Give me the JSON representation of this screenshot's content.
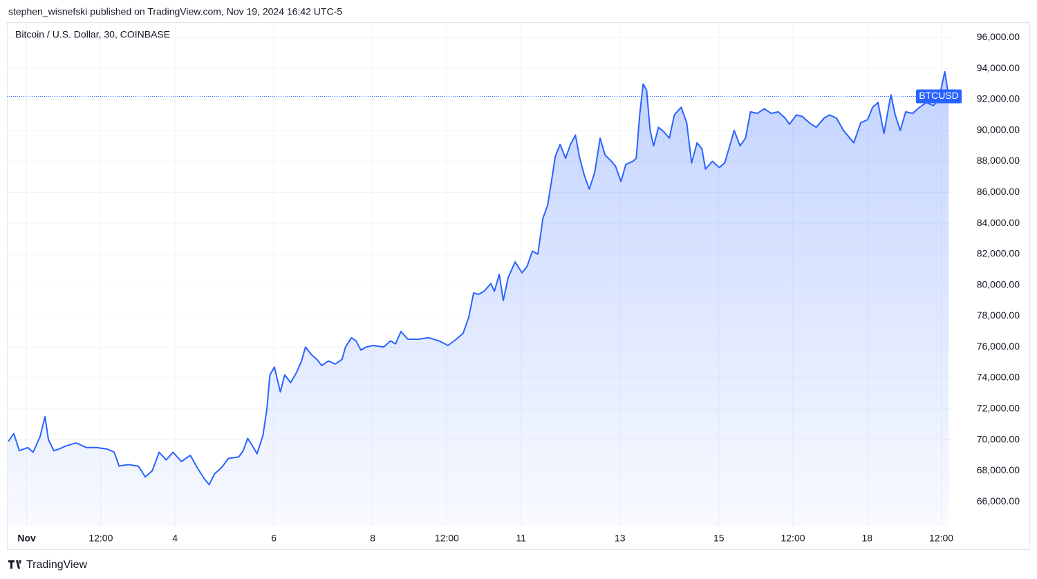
{
  "header": "stephen_wisnefski published on TradingView.com, Nov 19, 2024 16:42 UTC-5",
  "footer": "TradingView",
  "chart_data": {
    "type": "area",
    "title": "Bitcoin / U.S. Dollar, 30, COINBASE",
    "grid": true,
    "x": [
      0.63,
      0.74,
      0.85,
      1.02,
      1.13,
      1.27,
      1.37,
      1.44,
      1.55,
      1.65,
      1.79,
      2.0,
      2.21,
      2.42,
      2.63,
      2.77,
      2.87,
      3.05,
      3.26,
      3.4,
      3.54,
      3.68,
      3.82,
      3.96,
      4.13,
      4.31,
      4.45,
      4.59,
      4.69,
      4.8,
      4.94,
      5.08,
      5.29,
      5.38,
      5.47,
      5.57,
      5.66,
      5.78,
      5.86,
      5.92,
      6.01,
      6.13,
      6.22,
      6.34,
      6.45,
      6.56,
      6.64,
      6.76,
      6.87,
      6.97,
      7.1,
      7.24,
      7.38,
      7.45,
      7.57,
      7.66,
      7.76,
      7.87,
      8.01,
      8.22,
      8.36,
      8.46,
      8.57,
      8.71,
      8.92,
      9.13,
      9.34,
      9.52,
      9.69,
      9.83,
      9.94,
      10.04,
      10.14,
      10.25,
      10.39,
      10.46,
      10.56,
      10.64,
      10.74,
      10.88,
      11.02,
      11.12,
      11.23,
      11.34,
      11.44,
      11.54,
      11.62,
      11.69,
      11.79,
      11.9,
      12.0,
      12.1,
      12.18,
      12.28,
      12.38,
      12.49,
      12.6,
      12.7,
      12.8,
      12.91,
      13.02,
      13.12,
      13.26,
      13.33,
      13.4,
      13.47,
      13.54,
      13.61,
      13.68,
      13.78,
      13.89,
      14.0,
      14.1,
      14.24,
      14.35,
      14.45,
      14.56,
      14.66,
      14.73,
      14.87,
      15.01,
      15.12,
      15.22,
      15.31,
      15.43,
      15.54,
      15.64,
      15.78,
      15.92,
      16.06,
      16.2,
      16.34,
      16.43,
      16.57,
      16.69,
      16.83,
      16.97,
      17.13,
      17.24,
      17.38,
      17.52,
      17.73,
      17.87,
      18.01,
      18.11,
      18.22,
      18.34,
      18.48,
      18.57,
      18.67,
      18.78,
      18.92,
      19.06,
      19.2,
      19.34,
      19.45,
      19.57,
      19.65
    ],
    "series": [
      {
        "name": "BTCUSD",
        "color": "#2962ff",
        "values": [
          69900,
          70400,
          69300,
          69500,
          69200,
          70200,
          71500,
          70000,
          69300,
          69400,
          69600,
          69800,
          69500,
          69500,
          69400,
          69200,
          68300,
          68400,
          68300,
          67600,
          68000,
          69200,
          68700,
          69200,
          68600,
          69000,
          68200,
          67500,
          67100,
          67800,
          68200,
          68800,
          68900,
          69300,
          70100,
          69600,
          69100,
          70300,
          72000,
          74200,
          74700,
          73100,
          74200,
          73700,
          74300,
          75100,
          76000,
          75500,
          75200,
          74800,
          75100,
          74900,
          75200,
          76000,
          76600,
          76400,
          75800,
          76000,
          76100,
          76000,
          76400,
          76200,
          77000,
          76500,
          76500,
          76600,
          76400,
          76100,
          76500,
          76900,
          77900,
          79500,
          79400,
          79600,
          80100,
          79600,
          80700,
          79000,
          80500,
          81500,
          80800,
          81200,
          82200,
          82000,
          84300,
          85200,
          86800,
          88300,
          89100,
          88200,
          89100,
          89700,
          88300,
          87100,
          86200,
          87300,
          89500,
          88400,
          88100,
          87700,
          86700,
          87800,
          88000,
          88200,
          91000,
          93000,
          92600,
          90000,
          89000,
          90200,
          89900,
          89500,
          91000,
          91500,
          90500,
          87900,
          89200,
          88800,
          87500,
          88000,
          87600,
          87900,
          89000,
          90000,
          89000,
          89500,
          91200,
          91100,
          91400,
          91100,
          91200,
          90800,
          90400,
          91000,
          90900,
          90500,
          90200,
          90800,
          91000,
          90800,
          90000,
          89200,
          90500,
          90700,
          91500,
          91800,
          89800,
          92300,
          91000,
          90000,
          91200,
          91100,
          91500,
          91800,
          91600,
          92000,
          93800,
          92200
        ]
      }
    ],
    "xlim": [
      0.6,
      19.73
    ],
    "xticks": [
      {
        "value": 1,
        "label": "Nov"
      },
      {
        "value": 2.5,
        "label": "12:00"
      },
      4,
      6,
      8,
      {
        "value": 9.5,
        "label": "12:00"
      },
      11,
      13,
      15,
      {
        "value": 16.5,
        "label": "12:00"
      },
      18,
      {
        "value": 19.5,
        "label": "12:00"
      }
    ],
    "ylim": [
      64400,
      97000
    ],
    "yticks": [
      {
        "value": 66000,
        "label": "66,000.00"
      },
      {
        "value": 68000,
        "label": "68,000.00"
      },
      {
        "value": 70000,
        "label": "70,000.00"
      },
      {
        "value": 72000,
        "label": "72,000.00"
      },
      {
        "value": 74000,
        "label": "74,000.00"
      },
      {
        "value": 76000,
        "label": "76,000.00"
      },
      {
        "value": 78000,
        "label": "78,000.00"
      },
      {
        "value": 80000,
        "label": "80,000.00"
      },
      {
        "value": 82000,
        "label": "82,000.00"
      },
      {
        "value": 84000,
        "label": "84,000.00"
      },
      {
        "value": 86000,
        "label": "86,000.00"
      },
      {
        "value": 88000,
        "label": "88,000.00"
      },
      {
        "value": 90000,
        "label": "90,000.00"
      },
      {
        "value": 92000,
        "label": "92,000.00"
      },
      {
        "value": 94000,
        "label": "94,000.00"
      },
      {
        "value": 96000,
        "label": "96,000.00"
      }
    ]
  }
}
